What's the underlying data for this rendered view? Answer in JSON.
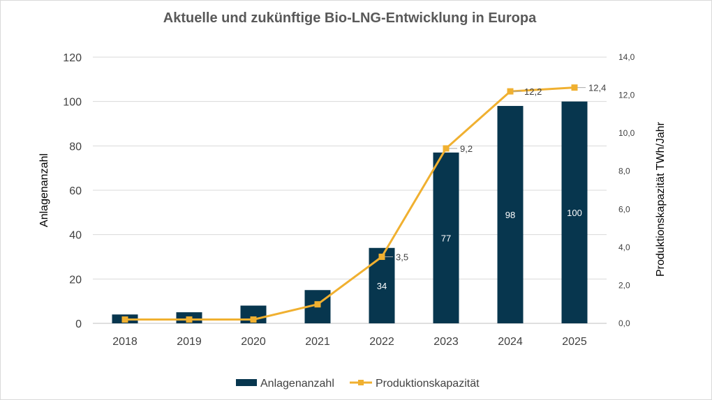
{
  "chart_data": {
    "type": "bar+line",
    "title": "Aktuelle und zukünftige Bio-LNG-Entwicklung in Europa",
    "categories": [
      "2018",
      "2019",
      "2020",
      "2021",
      "2022",
      "2023",
      "2024",
      "2025"
    ],
    "y_left": {
      "label": "Anlagenanzahl",
      "ylim": [
        0,
        120
      ],
      "ticks": [
        "0",
        "20",
        "40",
        "60",
        "80",
        "100",
        "120"
      ]
    },
    "y_right": {
      "label": "Produktionskapazität TWh/Jahr",
      "ylim": [
        0,
        14
      ],
      "ticks": [
        "0,0",
        "2,0",
        "4,0",
        "6,0",
        "8,0",
        "10,0",
        "12,0",
        "14,0"
      ]
    },
    "series": [
      {
        "name": "Anlagenanzahl",
        "type": "bar",
        "axis": "left",
        "color": "#07364e",
        "values": [
          4,
          5,
          8,
          15,
          34,
          77,
          98,
          100
        ],
        "data_labels": [
          "",
          "",
          "",
          "",
          "34",
          "77",
          "98",
          "100"
        ]
      },
      {
        "name": "Produktionskapazität",
        "type": "line",
        "axis": "right",
        "color": "#f0b030",
        "values": [
          0.2,
          0.2,
          0.2,
          1.0,
          3.5,
          9.2,
          12.2,
          12.4
        ],
        "data_labels": [
          "",
          "",
          "",
          "",
          "3,5",
          "9,2",
          "12,2",
          "12,4"
        ]
      }
    ],
    "grid": true,
    "legend": "bottom"
  }
}
